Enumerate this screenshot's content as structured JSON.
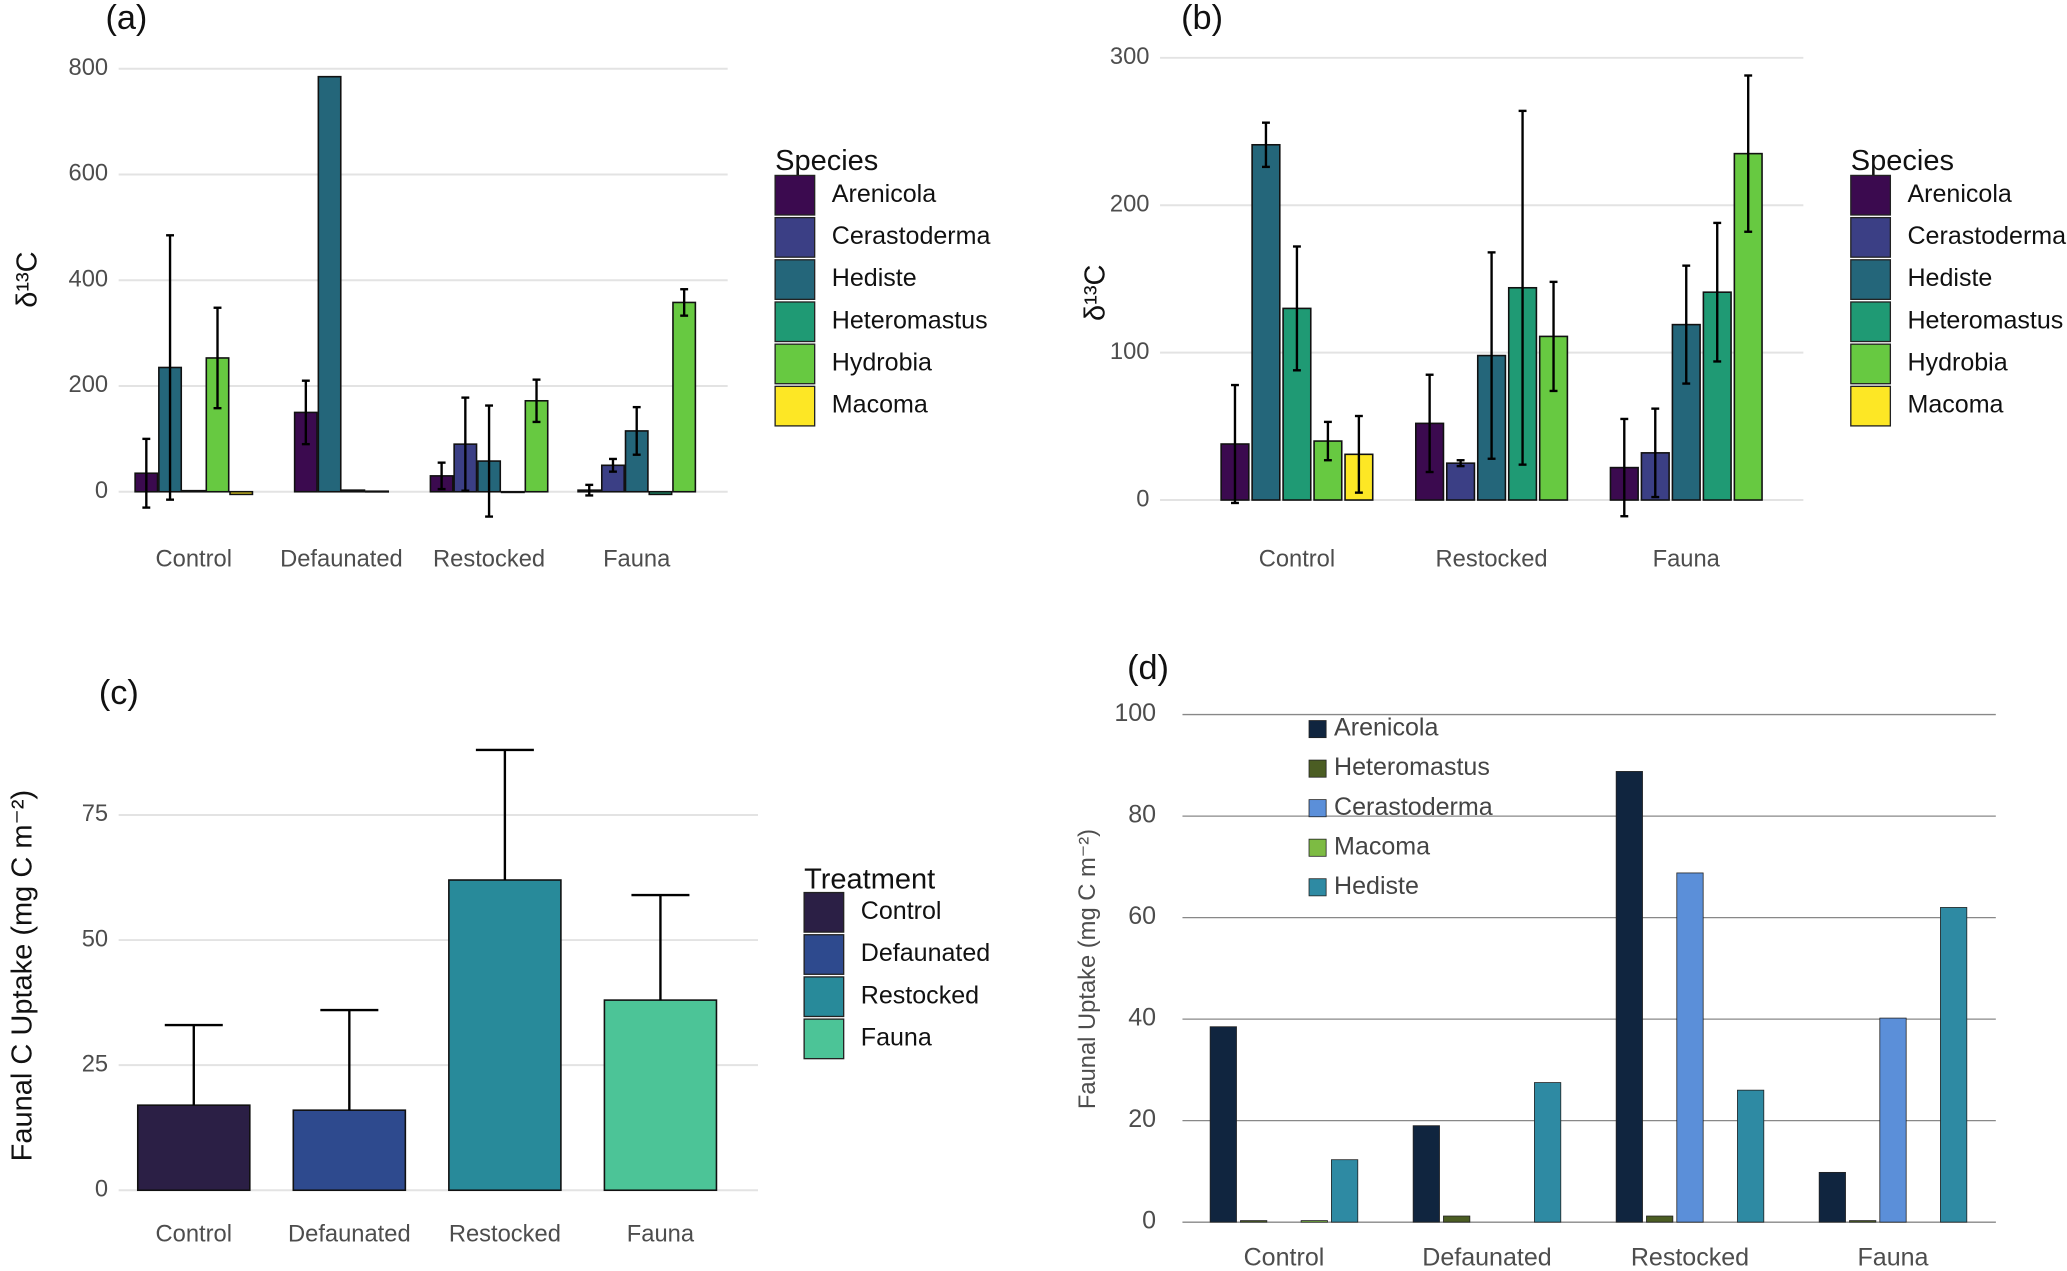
{
  "chart_data": [
    {
      "type": "bar",
      "panel_label": "(a)",
      "ylabel": "δ¹³C",
      "legend_title": "Species",
      "legend": "right",
      "error_bars": "both",
      "grid": true,
      "categories": [
        "Control",
        "Defaunated",
        "Restocked",
        "Fauna"
      ],
      "ylim": [
        -55,
        860
      ],
      "yticks": [
        0,
        200,
        400,
        600,
        800
      ],
      "series": [
        {
          "name": "Arenicola",
          "color": "#3b0a4f",
          "values": [
            35,
            150,
            30,
            3
          ],
          "errors": [
            65,
            60,
            25,
            10
          ]
        },
        {
          "name": "Cerastoderma",
          "color": "#3b3f85",
          "values": [
            null,
            null,
            90,
            50
          ],
          "errors": [
            null,
            null,
            88,
            12
          ]
        },
        {
          "name": "Hediste",
          "color": "#24667a",
          "values": [
            235,
            785,
            58,
            115
          ],
          "errors": [
            250,
            null,
            105,
            45
          ]
        },
        {
          "name": "Heteromastus",
          "color": "#1f9a74",
          "values": [
            2,
            3,
            0,
            -5
          ],
          "errors": [
            null,
            null,
            null,
            null
          ]
        },
        {
          "name": "Hydrobia",
          "color": "#67c941",
          "values": [
            253,
            1,
            172,
            358
          ],
          "errors": [
            95,
            null,
            40,
            25
          ]
        },
        {
          "name": "Macoma",
          "color": "#fde725",
          "values": [
            -5,
            null,
            null,
            null
          ],
          "errors": [
            null,
            null,
            null,
            null
          ]
        }
      ]
    },
    {
      "type": "bar",
      "panel_label": "(b)",
      "ylabel": "δ¹³C",
      "legend_title": "Species",
      "legend": "right",
      "error_bars": "both",
      "grid": true,
      "categories": [
        "Control",
        "Restocked",
        "Fauna"
      ],
      "ylim": [
        -15,
        315
      ],
      "yticks": [
        0,
        100,
        200,
        300
      ],
      "series": [
        {
          "name": "Arenicola",
          "color": "#3b0a4f",
          "values": [
            38,
            52,
            22
          ],
          "errors": [
            40,
            33,
            33
          ]
        },
        {
          "name": "Cerastoderma",
          "color": "#3b3f85",
          "values": [
            null,
            25,
            32
          ],
          "errors": [
            null,
            2,
            30
          ]
        },
        {
          "name": "Hediste",
          "color": "#24667a",
          "values": [
            241,
            98,
            119
          ],
          "errors": [
            15,
            70,
            40
          ]
        },
        {
          "name": "Heteromastus",
          "color": "#1f9a74",
          "values": [
            130,
            144,
            141
          ],
          "errors": [
            42,
            120,
            47
          ]
        },
        {
          "name": "Hydrobia",
          "color": "#67c941",
          "values": [
            40,
            111,
            235
          ],
          "errors": [
            13,
            37,
            53
          ]
        },
        {
          "name": "Macoma",
          "color": "#fde725",
          "values": [
            31,
            null,
            null
          ],
          "errors": [
            26,
            null,
            null
          ]
        }
      ]
    },
    {
      "type": "bar",
      "panel_label": "(c)",
      "ylabel": "Faunal C Uptake (mg C m⁻²)",
      "legend_title": "Treatment",
      "legend": "right",
      "error_bars": "upper",
      "grid": true,
      "categories": [
        "Control",
        "Defaunated",
        "Restocked",
        "Fauna"
      ],
      "ylim": [
        -4,
        89
      ],
      "yticks": [
        0,
        25,
        50,
        75
      ],
      "values": [
        17,
        16,
        62,
        38
      ],
      "errors": [
        16,
        20,
        26,
        21
      ],
      "colors": [
        "#2b1f45",
        "#2e4a8e",
        "#288a9a",
        "#4cc497"
      ]
    },
    {
      "type": "bar",
      "panel_label": "(d)",
      "ylabel": "Faunal Uptake (mg C m⁻²)",
      "legend": "inside top left",
      "grid": true,
      "categories": [
        "Control",
        "Defaunated",
        "Restocked",
        "Fauna"
      ],
      "ylim": [
        0,
        100
      ],
      "yticks": [
        0,
        20,
        40,
        60,
        80,
        100
      ],
      "series": [
        {
          "name": "Arenicola",
          "color": "#10253f",
          "values": [
            38.5,
            19,
            88.8,
            9.8
          ]
        },
        {
          "name": "Heteromastus",
          "color": "#4b5d23",
          "values": [
            0.3,
            1.2,
            1.2,
            0.3
          ]
        },
        {
          "name": "Cerastoderma",
          "color": "#5b8fd9",
          "values": [
            null,
            null,
            68.8,
            40.2
          ]
        },
        {
          "name": "Macoma",
          "color": "#7dbb43",
          "values": [
            0.3,
            null,
            null,
            null
          ]
        },
        {
          "name": "Hediste",
          "color": "#2e8aa3",
          "values": [
            12.3,
            27.5,
            26,
            62
          ]
        }
      ]
    }
  ]
}
